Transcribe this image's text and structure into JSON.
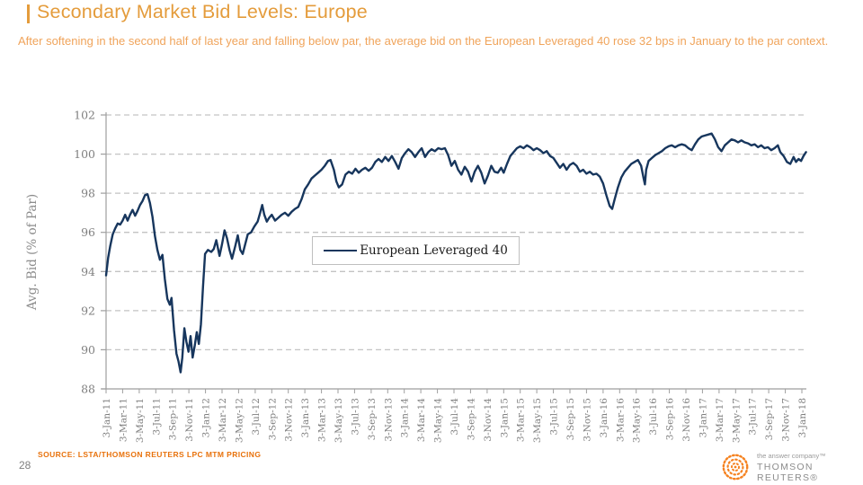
{
  "page": {
    "title": "Secondary Market Bid Levels: Europe",
    "subtitle": "After softening in the second half of last year and falling below par, the average bid on the European Leveraged 40 rose 32 bps in January to the par context.",
    "source_text": "SOURCE: LSTA/THOMSON REUTERS LPC MTM PRICING",
    "page_number": "28",
    "logo": {
      "tagline": "the answer company™",
      "brand": "THOMSON REUTERS®"
    },
    "colors": {
      "title_orange": "#E49C3C",
      "subtitle_orange": "#F0A45B",
      "source_orange": "#E8720C",
      "logo_orange": "#F58220",
      "logo_gray": "#8C8C8C"
    }
  },
  "chart_data": {
    "type": "line",
    "title": "",
    "xlabel": "",
    "ylabel": "Avg. Bid (% of Par)",
    "ylim": [
      88,
      102
    ],
    "yticks": [
      88,
      90,
      92,
      94,
      96,
      98,
      100,
      102
    ],
    "grid": "horizontal dashed",
    "legend_position": "center-left box inside plot",
    "x_unit_note": "x = months since 3-Jan-2011; ticks every 2 months",
    "x_tick_labels": [
      "3-Jan-11",
      "3-Mar-11",
      "3-May-11",
      "3-Jul-11",
      "3-Sep-11",
      "3-Nov-11",
      "3-Jan-12",
      "3-Mar-12",
      "3-May-12",
      "3-Jul-12",
      "3-Sep-12",
      "3-Nov-12",
      "3-Jan-13",
      "3-Mar-13",
      "3-May-13",
      "3-Jul-13",
      "3-Sep-13",
      "3-Nov-13",
      "3-Jan-14",
      "3-Mar-14",
      "3-May-14",
      "3-Jul-14",
      "3-Sep-14",
      "3-Nov-14",
      "3-Jan-15",
      "3-Mar-15",
      "3-May-15",
      "3-Jul-15",
      "3-Sep-15",
      "3-Nov-15",
      "3-Jan-16",
      "3-Mar-16",
      "3-May-16",
      "3-Jul-16",
      "3-Sep-16",
      "3-Nov-16",
      "3-Jan-17",
      "3-Mar-17",
      "3-May-17",
      "3-Jul-17",
      "3-Sep-17",
      "3-Nov-17",
      "3-Jan-18"
    ],
    "colors": {
      "grid": "#C3C3C3",
      "axis": "#9E9E9E",
      "tick_label": "#7F7F7F"
    },
    "series": [
      {
        "name": "European Leveraged 40",
        "color": "#17365D",
        "points": [
          [
            0,
            93.8
          ],
          [
            0.25,
            94.7
          ],
          [
            0.5,
            95.3
          ],
          [
            0.8,
            95.9
          ],
          [
            1.1,
            96.2
          ],
          [
            1.4,
            96.45
          ],
          [
            1.7,
            96.4
          ],
          [
            2,
            96.6
          ],
          [
            2.3,
            96.9
          ],
          [
            2.6,
            96.6
          ],
          [
            2.9,
            96.9
          ],
          [
            3.2,
            97.15
          ],
          [
            3.5,
            96.85
          ],
          [
            3.8,
            97.1
          ],
          [
            4.1,
            97.4
          ],
          [
            4.4,
            97.6
          ],
          [
            4.7,
            97.9
          ],
          [
            5,
            97.95
          ],
          [
            5.3,
            97.5
          ],
          [
            5.6,
            96.8
          ],
          [
            5.9,
            95.8
          ],
          [
            6.2,
            95.1
          ],
          [
            6.5,
            94.6
          ],
          [
            6.8,
            94.85
          ],
          [
            7.1,
            93.6
          ],
          [
            7.4,
            92.6
          ],
          [
            7.7,
            92.3
          ],
          [
            7.9,
            92.65
          ],
          [
            8.2,
            91
          ],
          [
            8.5,
            89.8
          ],
          [
            8.75,
            89.4
          ],
          [
            9,
            88.85
          ],
          [
            9.2,
            89.6
          ],
          [
            9.45,
            91.1
          ],
          [
            9.7,
            90.4
          ],
          [
            9.95,
            89.9
          ],
          [
            10.2,
            90.7
          ],
          [
            10.45,
            89.6
          ],
          [
            10.7,
            90.2
          ],
          [
            10.95,
            90.9
          ],
          [
            11.2,
            90.3
          ],
          [
            11.45,
            91.3
          ],
          [
            11.7,
            93.2
          ],
          [
            11.95,
            94.9
          ],
          [
            12.3,
            95.1
          ],
          [
            12.7,
            95
          ],
          [
            13,
            95.15
          ],
          [
            13.3,
            95.6
          ],
          [
            13.7,
            94.8
          ],
          [
            14,
            95.4
          ],
          [
            14.3,
            96.1
          ],
          [
            14.6,
            95.7
          ],
          [
            14.9,
            95.1
          ],
          [
            15.2,
            94.65
          ],
          [
            15.6,
            95.3
          ],
          [
            15.9,
            95.85
          ],
          [
            16.2,
            95.1
          ],
          [
            16.5,
            94.9
          ],
          [
            16.8,
            95.4
          ],
          [
            17.1,
            95.9
          ],
          [
            17.5,
            96
          ],
          [
            17.9,
            96.3
          ],
          [
            18.3,
            96.55
          ],
          [
            18.6,
            97
          ],
          [
            18.85,
            97.4
          ],
          [
            19.1,
            96.9
          ],
          [
            19.4,
            96.55
          ],
          [
            19.7,
            96.75
          ],
          [
            20,
            96.9
          ],
          [
            20.4,
            96.6
          ],
          [
            20.8,
            96.75
          ],
          [
            21.2,
            96.9
          ],
          [
            21.6,
            97
          ],
          [
            22,
            96.85
          ],
          [
            22.4,
            97.05
          ],
          [
            22.8,
            97.2
          ],
          [
            23.2,
            97.3
          ],
          [
            23.6,
            97.7
          ],
          [
            24,
            98.2
          ],
          [
            24.4,
            98.45
          ],
          [
            24.8,
            98.75
          ],
          [
            25.2,
            98.9
          ],
          [
            25.6,
            99.05
          ],
          [
            26,
            99.2
          ],
          [
            26.4,
            99.4
          ],
          [
            26.8,
            99.65
          ],
          [
            27.1,
            99.7
          ],
          [
            27.5,
            99.2
          ],
          [
            27.8,
            98.6
          ],
          [
            28.1,
            98.3
          ],
          [
            28.5,
            98.45
          ],
          [
            28.9,
            98.95
          ],
          [
            29.3,
            99.1
          ],
          [
            29.7,
            99
          ],
          [
            30.1,
            99.25
          ],
          [
            30.5,
            99.05
          ],
          [
            30.9,
            99.2
          ],
          [
            31.3,
            99.3
          ],
          [
            31.7,
            99.15
          ],
          [
            32.1,
            99.3
          ],
          [
            32.5,
            99.6
          ],
          [
            32.9,
            99.75
          ],
          [
            33.3,
            99.6
          ],
          [
            33.7,
            99.85
          ],
          [
            34.1,
            99.65
          ],
          [
            34.5,
            99.9
          ],
          [
            34.9,
            99.6
          ],
          [
            35.3,
            99.25
          ],
          [
            35.7,
            99.8
          ],
          [
            36.1,
            100.05
          ],
          [
            36.5,
            100.25
          ],
          [
            36.9,
            100.1
          ],
          [
            37.3,
            99.85
          ],
          [
            37.7,
            100.1
          ],
          [
            38.1,
            100.3
          ],
          [
            38.5,
            99.85
          ],
          [
            38.9,
            100.1
          ],
          [
            39.3,
            100.25
          ],
          [
            39.7,
            100.15
          ],
          [
            40.1,
            100.3
          ],
          [
            40.5,
            100.25
          ],
          [
            40.9,
            100.3
          ],
          [
            41.3,
            99.95
          ],
          [
            41.7,
            99.4
          ],
          [
            42.1,
            99.65
          ],
          [
            42.5,
            99.2
          ],
          [
            42.9,
            98.95
          ],
          [
            43.3,
            99.35
          ],
          [
            43.7,
            99.1
          ],
          [
            44.1,
            98.6
          ],
          [
            44.5,
            99.1
          ],
          [
            44.9,
            99.4
          ],
          [
            45.3,
            99.05
          ],
          [
            45.7,
            98.5
          ],
          [
            46.1,
            98.9
          ],
          [
            46.5,
            99.4
          ],
          [
            46.9,
            99.1
          ],
          [
            47.3,
            99.05
          ],
          [
            47.7,
            99.3
          ],
          [
            48,
            99.05
          ],
          [
            48.4,
            99.5
          ],
          [
            48.8,
            99.9
          ],
          [
            49.2,
            100.1
          ],
          [
            49.6,
            100.3
          ],
          [
            50,
            100.4
          ],
          [
            50.4,
            100.3
          ],
          [
            50.8,
            100.45
          ],
          [
            51.2,
            100.35
          ],
          [
            51.6,
            100.2
          ],
          [
            52,
            100.3
          ],
          [
            52.4,
            100.2
          ],
          [
            52.8,
            100.05
          ],
          [
            53.2,
            100.15
          ],
          [
            53.6,
            99.9
          ],
          [
            54,
            99.8
          ],
          [
            54.4,
            99.55
          ],
          [
            54.8,
            99.3
          ],
          [
            55.2,
            99.5
          ],
          [
            55.6,
            99.2
          ],
          [
            56,
            99.45
          ],
          [
            56.4,
            99.55
          ],
          [
            56.8,
            99.4
          ],
          [
            57.2,
            99.1
          ],
          [
            57.6,
            99.2
          ],
          [
            58,
            99
          ],
          [
            58.4,
            99.1
          ],
          [
            58.8,
            98.95
          ],
          [
            59.2,
            99
          ],
          [
            59.6,
            98.85
          ],
          [
            60,
            98.5
          ],
          [
            60.4,
            97.9
          ],
          [
            60.8,
            97.35
          ],
          [
            61.1,
            97.2
          ],
          [
            61.4,
            97.7
          ],
          [
            61.8,
            98.3
          ],
          [
            62.2,
            98.8
          ],
          [
            62.6,
            99.1
          ],
          [
            63,
            99.3
          ],
          [
            63.4,
            99.5
          ],
          [
            63.8,
            99.6
          ],
          [
            64.2,
            99.7
          ],
          [
            64.6,
            99.4
          ],
          [
            64.9,
            98.75
          ],
          [
            65.05,
            98.45
          ],
          [
            65.2,
            99.2
          ],
          [
            65.5,
            99.65
          ],
          [
            65.9,
            99.8
          ],
          [
            66.3,
            99.95
          ],
          [
            66.7,
            100.05
          ],
          [
            67.1,
            100.15
          ],
          [
            67.5,
            100.3
          ],
          [
            67.9,
            100.4
          ],
          [
            68.3,
            100.45
          ],
          [
            68.7,
            100.35
          ],
          [
            69.1,
            100.45
          ],
          [
            69.5,
            100.5
          ],
          [
            69.9,
            100.45
          ],
          [
            70.3,
            100.3
          ],
          [
            70.7,
            100.2
          ],
          [
            71.1,
            100.5
          ],
          [
            71.5,
            100.75
          ],
          [
            71.9,
            100.9
          ],
          [
            72.3,
            100.95
          ],
          [
            72.7,
            101
          ],
          [
            73.1,
            101.05
          ],
          [
            73.5,
            100.75
          ],
          [
            73.9,
            100.35
          ],
          [
            74.3,
            100.15
          ],
          [
            74.7,
            100.45
          ],
          [
            75.1,
            100.6
          ],
          [
            75.5,
            100.75
          ],
          [
            75.9,
            100.7
          ],
          [
            76.3,
            100.6
          ],
          [
            76.7,
            100.7
          ],
          [
            77.1,
            100.6
          ],
          [
            77.5,
            100.55
          ],
          [
            77.9,
            100.45
          ],
          [
            78.3,
            100.5
          ],
          [
            78.7,
            100.35
          ],
          [
            79.1,
            100.45
          ],
          [
            79.5,
            100.3
          ],
          [
            79.9,
            100.35
          ],
          [
            80.3,
            100.2
          ],
          [
            80.7,
            100.3
          ],
          [
            81.1,
            100.45
          ],
          [
            81.4,
            100.1
          ],
          [
            81.8,
            99.9
          ],
          [
            82.2,
            99.6
          ],
          [
            82.6,
            99.5
          ],
          [
            83,
            99.85
          ],
          [
            83.3,
            99.6
          ],
          [
            83.6,
            99.75
          ],
          [
            83.9,
            99.65
          ],
          [
            84.2,
            99.9
          ],
          [
            84.5,
            100.1
          ]
        ]
      }
    ]
  }
}
